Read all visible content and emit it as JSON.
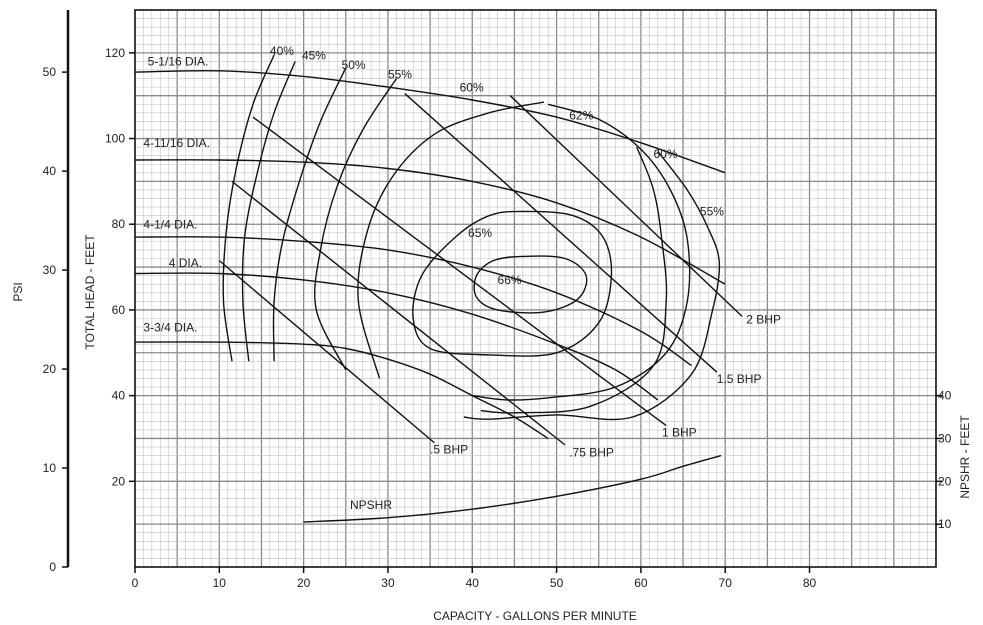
{
  "chart_data": {
    "type": "line",
    "title": "",
    "xlabel": "CAPACITY - GALLONS PER MINUTE",
    "ylabel": "TOTAL HEAD - FEET",
    "ylabel_left": "PSI",
    "ylabel_right": "NPSHR - FEET",
    "xlim": [
      0,
      95
    ],
    "ylim": [
      0,
      130
    ],
    "grid": true,
    "x_ticks": [
      "0",
      "10",
      "20",
      "30",
      "40",
      "50",
      "60",
      "70",
      "80"
    ],
    "y_ticks": [
      "20",
      "40",
      "60",
      "80",
      "100",
      "120"
    ],
    "psi_ticks": [
      "0",
      "10",
      "20",
      "30",
      "40",
      "50"
    ],
    "npshr_ticks": [
      "10",
      "20",
      "30",
      "40"
    ],
    "impeller_curves": [
      {
        "name": "5-1/16 DIA.",
        "points": [
          [
            0,
            115.5
          ],
          [
            10,
            115.8
          ],
          [
            20,
            114.5
          ],
          [
            30,
            112
          ],
          [
            40,
            109
          ],
          [
            50,
            105
          ],
          [
            60,
            99
          ],
          [
            70,
            92
          ]
        ]
      },
      {
        "name": "4-11/16 DIA.",
        "points": [
          [
            0,
            95
          ],
          [
            10,
            95
          ],
          [
            20,
            94.5
          ],
          [
            30,
            93
          ],
          [
            40,
            90
          ],
          [
            50,
            85
          ],
          [
            60,
            77
          ],
          [
            70,
            66
          ]
        ]
      },
      {
        "name": "4-1/4 DIA.",
        "points": [
          [
            0,
            77
          ],
          [
            10,
            77
          ],
          [
            20,
            76
          ],
          [
            30,
            74
          ],
          [
            40,
            70
          ],
          [
            50,
            64
          ],
          [
            60,
            55
          ],
          [
            66,
            47
          ]
        ]
      },
      {
        "name": "4 DIA.",
        "points": [
          [
            0,
            68.5
          ],
          [
            10,
            68.5
          ],
          [
            20,
            67
          ],
          [
            30,
            64
          ],
          [
            40,
            59
          ],
          [
            50,
            52
          ],
          [
            57,
            46
          ],
          [
            62,
            39
          ]
        ]
      },
      {
        "name": "3-3/4 DIA.",
        "points": [
          [
            0,
            52.5
          ],
          [
            10,
            52.5
          ],
          [
            20,
            52
          ],
          [
            25,
            51
          ],
          [
            30,
            48.5
          ],
          [
            35,
            45
          ],
          [
            40,
            40
          ],
          [
            45,
            35
          ],
          [
            49,
            30
          ]
        ]
      }
    ],
    "efficiency_labels": [
      "40%",
      "45%",
      "50%",
      "55%",
      "60%",
      "62%",
      "60%",
      "55%",
      "65%",
      "66%"
    ],
    "bhp_lines": [
      {
        "name": ".5 BHP",
        "from": [
          10,
          71.5
        ],
        "to": [
          35.5,
          29
        ]
      },
      {
        "name": ".75 BHP",
        "from": [
          11.5,
          90
        ],
        "to": [
          51,
          28.5
        ]
      },
      {
        "name": "1 BHP",
        "from": [
          14,
          105
        ],
        "to": [
          63,
          33
        ]
      },
      {
        "name": "1.5 BHP",
        "from": [
          32,
          110.5
        ],
        "to": [
          69,
          45.5
        ]
      },
      {
        "name": "2 BHP",
        "from": [
          44.5,
          110
        ],
        "to": [
          72,
          58.5
        ]
      }
    ],
    "npshr_curve": {
      "name": "NPSHR",
      "points": [
        [
          20,
          10.5
        ],
        [
          30,
          11.5
        ],
        [
          40,
          13.5
        ],
        [
          50,
          16.5
        ],
        [
          60,
          20.5
        ],
        [
          65,
          23.5
        ],
        [
          69.5,
          26
        ]
      ]
    }
  }
}
